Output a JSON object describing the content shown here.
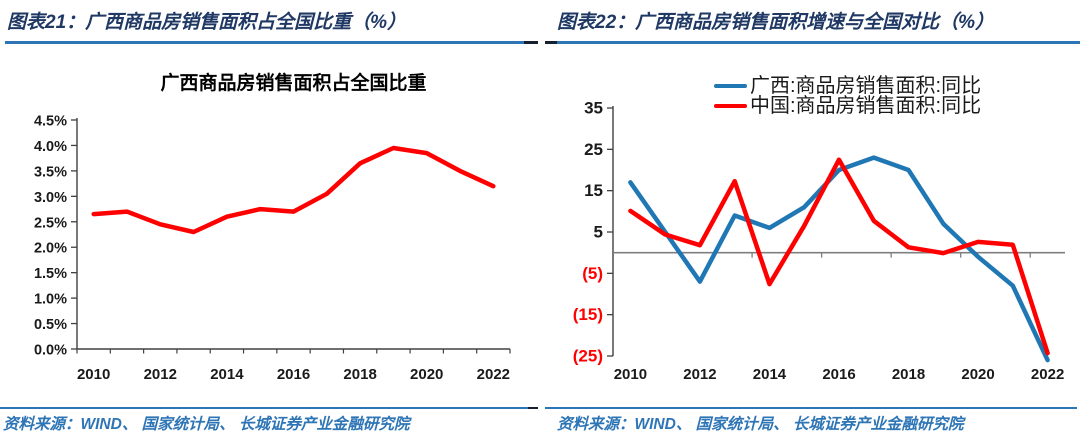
{
  "page": {
    "left": {
      "header": "图表21：广西商品房销售面积占全国比重（%）",
      "source": "资料来源：WIND、 国家统计局、 长城证券产业金融研究院"
    },
    "right": {
      "header": "图表22：广西商品房销售面积增速与全国对比（%）",
      "source": "资料来源：WIND、 国家统计局、 长城证券产业金融研究院"
    }
  },
  "colors": {
    "header_text": "#1F3864",
    "rule_blue": "#2E75B6",
    "source_text": "#2E75B6",
    "series_blue": "#1F77B4",
    "series_red": "#FF0000",
    "axis": "#404040",
    "tick_label": "#1a1a1a",
    "negative_label": "#FF0000",
    "zero_line": "#7F7F7F"
  },
  "chart_data": [
    {
      "type": "line",
      "title": "广西商品房销售面积占全国比重",
      "x": [
        2010,
        2011,
        2012,
        2013,
        2014,
        2015,
        2016,
        2017,
        2018,
        2019,
        2020,
        2021,
        2022
      ],
      "xticks": [
        2010,
        2012,
        2014,
        2016,
        2018,
        2020,
        2022
      ],
      "series": [
        {
          "name": "广西商品房销售面积占全国比重",
          "color": "#FF0000",
          "values": [
            2.65,
            2.7,
            2.45,
            2.3,
            2.6,
            2.75,
            2.7,
            3.05,
            3.65,
            3.95,
            3.85,
            3.5,
            3.2
          ]
        }
      ],
      "ylim": [
        0,
        4.5
      ],
      "ytick_step": 0.5,
      "ytick_format": "percent_1dp",
      "grid": false,
      "legend_position": "none"
    },
    {
      "type": "line",
      "title": "",
      "x": [
        2010,
        2011,
        2012,
        2013,
        2014,
        2015,
        2016,
        2017,
        2018,
        2019,
        2020,
        2021,
        2022
      ],
      "xticks": [
        2010,
        2012,
        2014,
        2016,
        2018,
        2020,
        2022
      ],
      "series": [
        {
          "name": "广西:商品房销售面积:同比",
          "color": "#1F77B4",
          "values": [
            17,
            5,
            -7,
            9,
            6,
            11,
            20,
            23,
            20,
            7,
            -1,
            -8,
            -26
          ]
        },
        {
          "name": "中国:商品房销售面积:同比",
          "color": "#FF0000",
          "values": [
            10.1,
            4.4,
            1.8,
            17.3,
            -7.6,
            6.5,
            22.5,
            7.7,
            1.3,
            -0.1,
            2.6,
            1.9,
            -24.3
          ]
        }
      ],
      "ylim": [
        -25,
        35
      ],
      "ytick_step": 10,
      "ytick_format": "paren_negative",
      "grid": false,
      "legend_position": "top"
    }
  ]
}
